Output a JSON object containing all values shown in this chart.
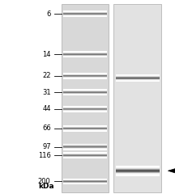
{
  "kda_labels": [
    "200",
    "116",
    "97",
    "66",
    "44",
    "31",
    "22",
    "14",
    "6"
  ],
  "kda_values": [
    200,
    116,
    97,
    66,
    44,
    31,
    22,
    14,
    6
  ],
  "kda_header": "kDa",
  "band1_kda": 160,
  "band2_kda": 23,
  "arrow_kda": 160,
  "label_fontsize": 6.0
}
